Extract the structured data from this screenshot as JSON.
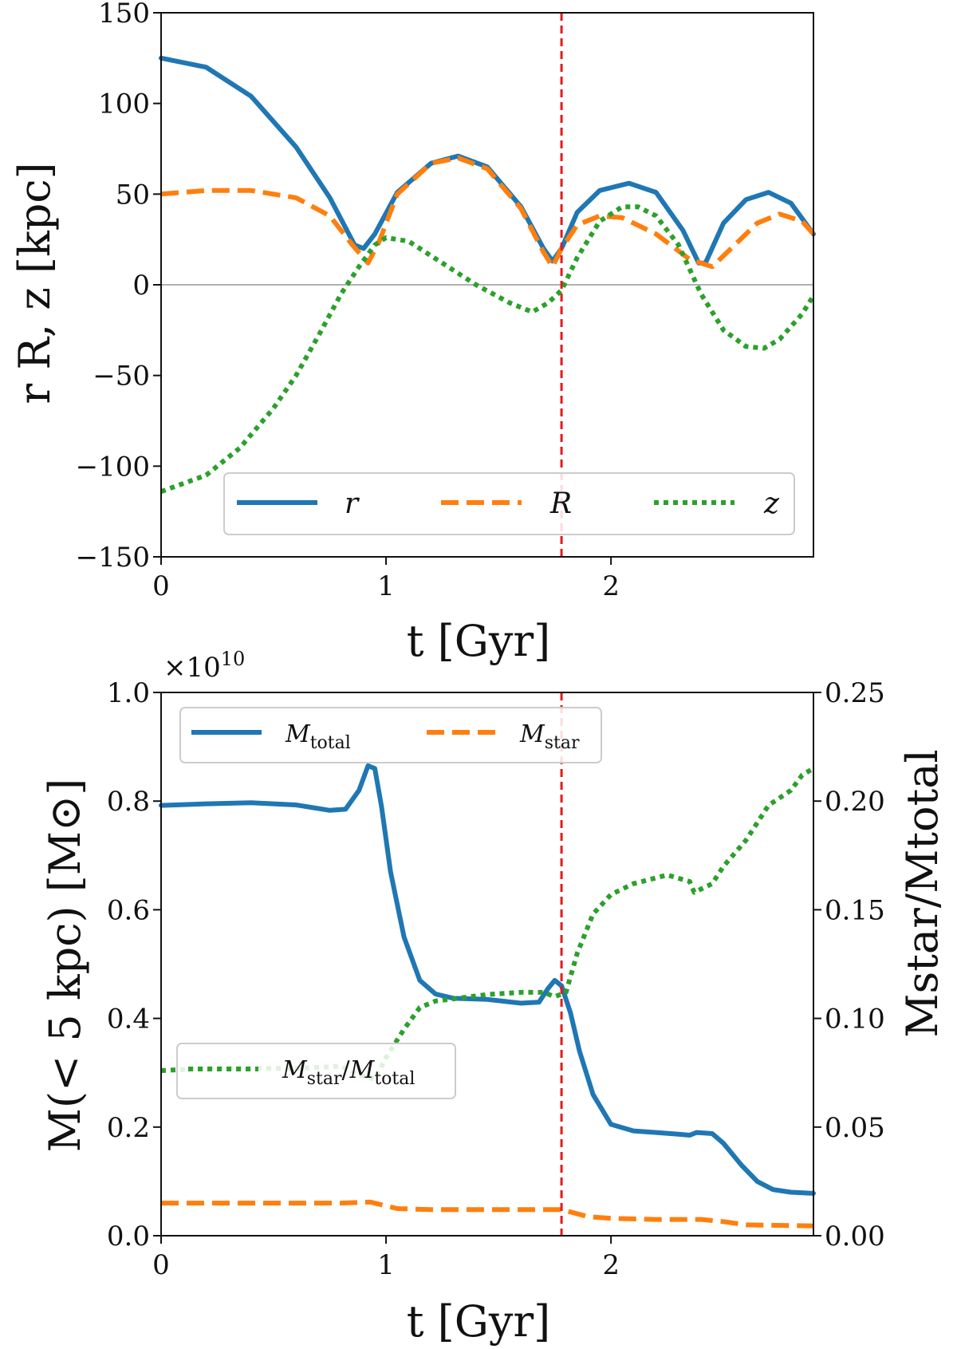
{
  "colors": {
    "blue": "#1f77b4",
    "orange": "#ff7f0e",
    "green": "#2ca02c",
    "red": "#e31a1c",
    "zero": "#b0b0b0"
  },
  "chart_data": [
    {
      "type": "line",
      "title": "",
      "xlabel": "t [Gyr]",
      "ylabel": "r R, z [kpc]",
      "xlim": [
        0,
        2.9
      ],
      "ylim": [
        -150,
        150
      ],
      "xticks": [
        0,
        1,
        2
      ],
      "xtick_labels": [
        "0",
        "1",
        "2"
      ],
      "yticks": [
        -150,
        -100,
        -50,
        0,
        50,
        100,
        150
      ],
      "ytick_labels": [
        "−150",
        "−100",
        "−50",
        "0",
        "50",
        "100",
        "150"
      ],
      "vline_x": 1.78,
      "hline_y": 0,
      "legend_position": "lower-center",
      "series": [
        {
          "name": "r",
          "style": "solid",
          "color": "#1f77b4",
          "x": [
            0,
            0.2,
            0.4,
            0.6,
            0.75,
            0.86,
            0.9,
            0.95,
            1.05,
            1.2,
            1.32,
            1.45,
            1.6,
            1.7,
            1.74,
            1.78,
            1.85,
            1.95,
            2.08,
            2.2,
            2.32,
            2.39,
            2.42,
            2.5,
            2.6,
            2.7,
            2.8,
            2.9
          ],
          "y": [
            125,
            120,
            104,
            76,
            48,
            22,
            20,
            28,
            51,
            67,
            71,
            65,
            43,
            20,
            13,
            20,
            40,
            52,
            56,
            51,
            30,
            12,
            12,
            34,
            47,
            51,
            45,
            28
          ]
        },
        {
          "name": "R",
          "style": "dashed",
          "color": "#ff7f0e",
          "x": [
            0,
            0.2,
            0.4,
            0.6,
            0.75,
            0.85,
            0.92,
            0.97,
            1.05,
            1.2,
            1.32,
            1.45,
            1.6,
            1.7,
            1.74,
            1.78,
            1.85,
            1.95,
            2.05,
            2.2,
            2.35,
            2.45,
            2.55,
            2.65,
            2.75,
            2.85,
            2.9
          ],
          "y": [
            50,
            52,
            52,
            48,
            38,
            22,
            12,
            24,
            50,
            67,
            70,
            64,
            42,
            18,
            10,
            20,
            33,
            38,
            37,
            28,
            14,
            10,
            22,
            34,
            39,
            35,
            28
          ]
        },
        {
          "name": "z",
          "style": "dotted",
          "color": "#2ca02c",
          "x": [
            0,
            0.2,
            0.35,
            0.5,
            0.6,
            0.7,
            0.8,
            0.88,
            0.95,
            1.0,
            1.1,
            1.25,
            1.4,
            1.55,
            1.65,
            1.72,
            1.78,
            1.85,
            1.95,
            2.05,
            2.12,
            2.2,
            2.3,
            2.4,
            2.5,
            2.6,
            2.68,
            2.75,
            2.85,
            2.9
          ],
          "y": [
            -114,
            -105,
            -90,
            -68,
            -50,
            -28,
            -5,
            10,
            22,
            26,
            24,
            12,
            0,
            -10,
            -15,
            -10,
            -3,
            15,
            35,
            43,
            43,
            38,
            22,
            -5,
            -25,
            -34,
            -35,
            -30,
            -16,
            -6
          ]
        }
      ]
    },
    {
      "type": "line",
      "title": "",
      "multiplier": "×10",
      "multiplier_exp": "10",
      "xlabel": "t [Gyr]",
      "ylabel": "M(< 5 kpc) [M⊙]",
      "ylabel_right": "Mstar/Mtotal",
      "xlim": [
        0,
        2.9
      ],
      "ylim": [
        0,
        1.0
      ],
      "ylim_right": [
        0,
        0.25
      ],
      "xticks": [
        0,
        1,
        2
      ],
      "xtick_labels": [
        "0",
        "1",
        "2"
      ],
      "yticks": [
        0,
        0.2,
        0.4,
        0.6,
        0.8,
        1.0
      ],
      "ytick_labels": [
        "0.0",
        "0.2",
        "0.4",
        "0.6",
        "0.8",
        "1.0"
      ],
      "yticks_right": [
        0,
        0.05,
        0.1,
        0.15,
        0.2,
        0.25
      ],
      "ytick_labels_right": [
        "0.00",
        "0.05",
        "0.10",
        "0.15",
        "0.20",
        "0.25"
      ],
      "vline_x": 1.78,
      "legend_position": "upper-left",
      "legend2_position": "lower-left",
      "series": [
        {
          "name": "Mtotal",
          "style": "solid",
          "color": "#1f77b4",
          "axis": "left",
          "x": [
            0,
            0.2,
            0.4,
            0.6,
            0.75,
            0.82,
            0.88,
            0.92,
            0.95,
            0.98,
            1.02,
            1.08,
            1.15,
            1.22,
            1.3,
            1.45,
            1.6,
            1.68,
            1.72,
            1.75,
            1.78,
            1.82,
            1.86,
            1.92,
            2.0,
            2.1,
            2.2,
            2.3,
            2.35,
            2.38,
            2.45,
            2.5,
            2.58,
            2.65,
            2.72,
            2.8,
            2.9
          ],
          "y": [
            0.792,
            0.795,
            0.797,
            0.793,
            0.783,
            0.785,
            0.82,
            0.865,
            0.86,
            0.79,
            0.67,
            0.55,
            0.47,
            0.445,
            0.437,
            0.435,
            0.428,
            0.43,
            0.455,
            0.47,
            0.46,
            0.41,
            0.34,
            0.26,
            0.205,
            0.193,
            0.19,
            0.187,
            0.185,
            0.19,
            0.188,
            0.17,
            0.13,
            0.1,
            0.085,
            0.08,
            0.078
          ]
        },
        {
          "name": "Mstar",
          "style": "dashed",
          "color": "#ff7f0e",
          "axis": "left",
          "x": [
            0,
            0.4,
            0.8,
            0.93,
            1.05,
            1.2,
            1.5,
            1.78,
            1.9,
            2.0,
            2.2,
            2.4,
            2.5,
            2.6,
            2.9
          ],
          "y": [
            0.06,
            0.06,
            0.06,
            0.062,
            0.05,
            0.048,
            0.048,
            0.048,
            0.035,
            0.032,
            0.03,
            0.03,
            0.026,
            0.02,
            0.018
          ]
        },
        {
          "name": "Mstar/Mtotal",
          "style": "dotted",
          "color": "#2ca02c",
          "axis": "right",
          "x": [
            0,
            0.2,
            0.4,
            0.6,
            0.8,
            0.88,
            0.95,
            1.0,
            1.08,
            1.15,
            1.22,
            1.3,
            1.45,
            1.6,
            1.7,
            1.75,
            1.8,
            1.85,
            1.92,
            2.0,
            2.1,
            2.25,
            2.35,
            2.37,
            2.45,
            2.5,
            2.6,
            2.7,
            2.8,
            2.85,
            2.9
          ],
          "y": [
            0.076,
            0.077,
            0.077,
            0.077,
            0.078,
            0.074,
            0.072,
            0.082,
            0.095,
            0.105,
            0.108,
            0.109,
            0.111,
            0.112,
            0.112,
            0.11,
            0.112,
            0.13,
            0.148,
            0.157,
            0.162,
            0.166,
            0.163,
            0.158,
            0.162,
            0.17,
            0.182,
            0.198,
            0.205,
            0.212,
            0.215
          ]
        }
      ]
    }
  ],
  "legend1": {
    "r": "r",
    "R": "R",
    "z": "z"
  },
  "legend2": {
    "total_sym": "M",
    "total_sub": "total",
    "star_sym": "M",
    "star_sub": "star"
  },
  "legend3": {
    "num": "M",
    "num_sub": "star",
    "slash": "/",
    "den": "M",
    "den_sub": "total"
  }
}
